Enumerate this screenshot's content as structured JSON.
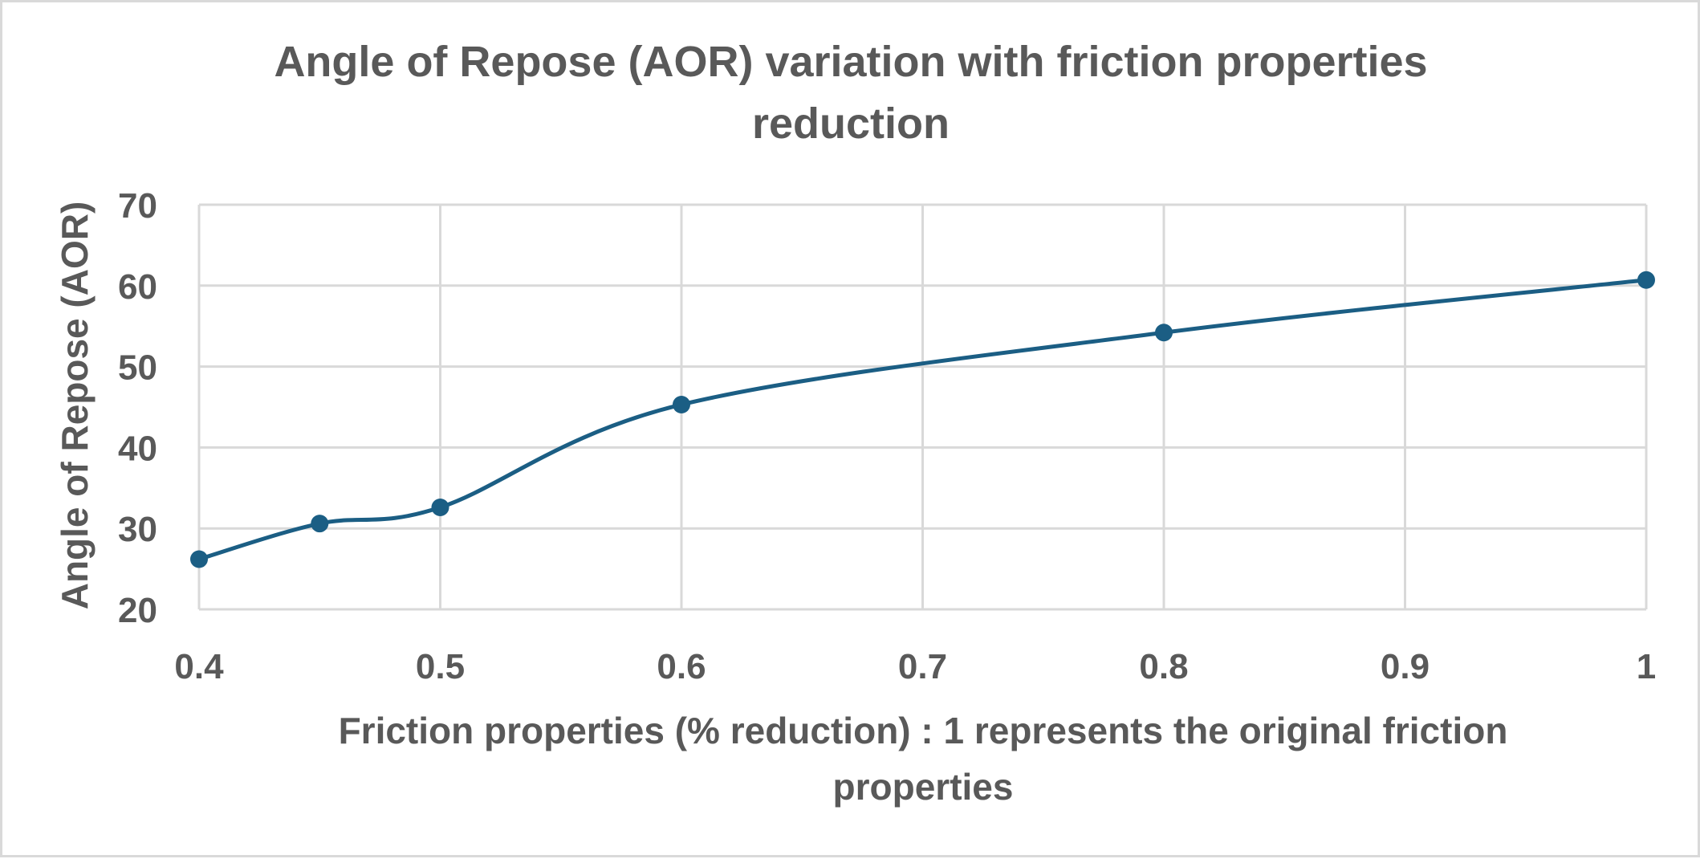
{
  "chart_data": {
    "type": "line",
    "title": "Angle of Repose (AOR) variation with friction properties reduction",
    "title_lines": [
      "Angle of Repose (AOR) variation with friction properties",
      "reduction"
    ],
    "xlabel": "Friction properties (% reduction) : 1 represents the original friction properties",
    "xlabel_lines": [
      "Friction properties (% reduction) : 1 represents the original friction",
      "properties"
    ],
    "ylabel": "Angle of Repose (AOR)",
    "x_ticks": [
      "0.4",
      "0.5",
      "0.6",
      "0.7",
      "0.8",
      "0.9",
      "1"
    ],
    "y_ticks": [
      "20",
      "30",
      "40",
      "50",
      "60",
      "70"
    ],
    "xlim": [
      0.4,
      1.0
    ],
    "ylim": [
      20,
      70
    ],
    "grid": true,
    "smooth": true,
    "markers": true,
    "legend": null,
    "series": [
      {
        "name": "AOR",
        "color": "#1b5e84",
        "x": [
          0.4,
          0.45,
          0.5,
          0.6,
          0.8,
          1.0
        ],
        "values": [
          26.2,
          30.6,
          32.6,
          45.3,
          54.2,
          60.7
        ]
      }
    ]
  },
  "colors": {
    "text": "#595959",
    "grid": "#d9d9d9",
    "border": "#d9d9d9",
    "series": "#1b5e84"
  }
}
